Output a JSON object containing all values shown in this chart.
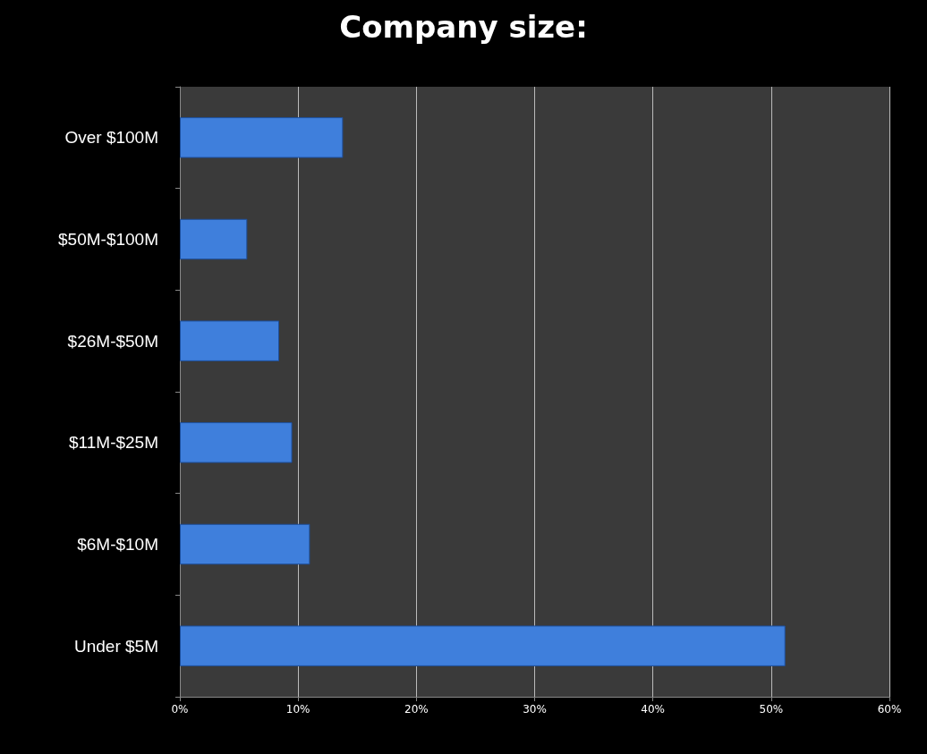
{
  "chart_data": {
    "type": "bar",
    "orientation": "horizontal",
    "title": "Company size:",
    "categories": [
      "Over $100M",
      "$50M-$100M",
      "$26M-$50M",
      "$11M-$25M",
      "$6M-$10M",
      "Under $5M"
    ],
    "values": [
      13.8,
      5.7,
      8.4,
      9.5,
      11,
      51.2
    ],
    "color": "#3f7fdc",
    "xlim": [
      0,
      60
    ],
    "xticks": [
      {
        "value": 0,
        "label": "0%"
      },
      {
        "value": 10,
        "label": "10%"
      },
      {
        "value": 20,
        "label": "20%"
      },
      {
        "value": 30,
        "label": "30%"
      },
      {
        "value": 40,
        "label": "40%"
      },
      {
        "value": 50,
        "label": "50%"
      },
      {
        "value": 60,
        "label": "60%"
      }
    ],
    "grid": "x"
  }
}
